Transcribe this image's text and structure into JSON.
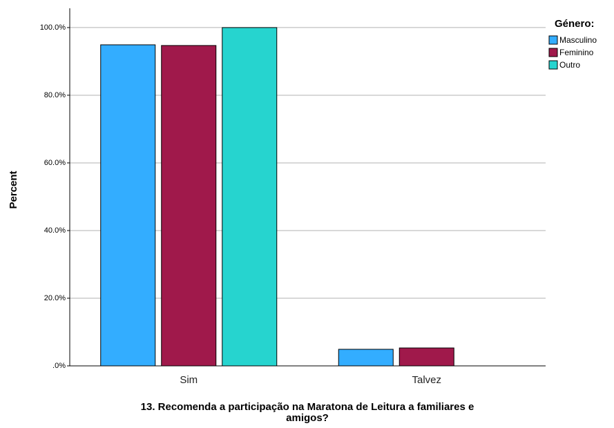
{
  "chart_data": {
    "type": "bar",
    "x_label": [
      "13. Recomenda a participação na Maratona de Leitura a familiares e",
      "amigos?"
    ],
    "y_label": "Percent",
    "legend_title": "Género:",
    "categories": [
      "Sim",
      "Talvez"
    ],
    "series": [
      {
        "name": "Masculino",
        "color": "#33adff",
        "values": [
          94.9,
          4.9
        ]
      },
      {
        "name": "Feminino",
        "color": "#a0194b",
        "values": [
          94.7,
          5.3
        ]
      },
      {
        "name": "Outro",
        "color": "#26d4cf",
        "values": [
          100,
          null
        ]
      }
    ],
    "ylim": [
      0,
      105.7
    ],
    "yticks": [
      {
        "value": 0,
        "label": ".0%"
      },
      {
        "value": 20,
        "label": "20.0%"
      },
      {
        "value": 40,
        "label": "40.0%"
      },
      {
        "value": 60,
        "label": "60.0%"
      },
      {
        "value": 80,
        "label": "80.0%"
      },
      {
        "value": 100,
        "label": "100.0%"
      }
    ],
    "grid": true,
    "legend": "right"
  }
}
